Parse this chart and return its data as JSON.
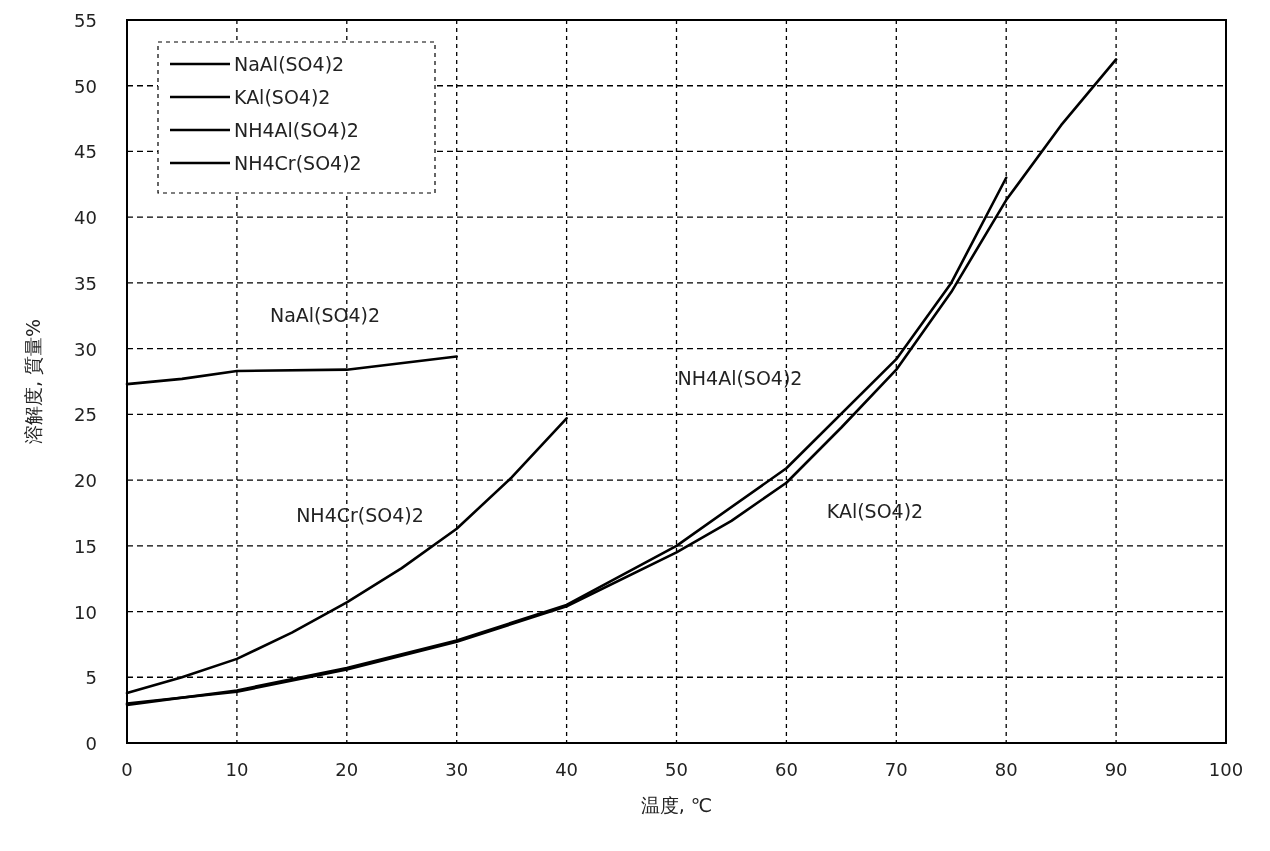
{
  "chart_data": {
    "type": "line",
    "xlabel": "温度, ℃",
    "ylabel": "溶解度, 質量%",
    "xlim": [
      0,
      100
    ],
    "xticks": [
      0,
      10,
      20,
      30,
      40,
      50,
      60,
      70,
      80,
      90,
      100
    ],
    "ylim": [
      0,
      55
    ],
    "yticks": [
      0,
      5,
      10,
      15,
      20,
      25,
      30,
      35,
      40,
      45,
      50,
      55
    ],
    "grid": true,
    "legend": "top left",
    "line_style": "solid",
    "marker": "none",
    "series": [
      {
        "name": "NaAl(SO4)2",
        "color": "#000000",
        "x": [
          0,
          5,
          10,
          20,
          30
        ],
        "values": [
          27.3,
          27.7,
          28.3,
          28.4,
          29.4
        ]
      },
      {
        "name": "KAl(SO4)2",
        "color": "#000000",
        "x": [
          0,
          10,
          20,
          30,
          40,
          50,
          55,
          60,
          65,
          70,
          75,
          80,
          85,
          90
        ],
        "values": [
          3.0,
          3.9,
          5.6,
          7.7,
          10.4,
          14.5,
          16.9,
          19.8,
          24.0,
          28.4,
          34.3,
          41.3,
          47.0,
          52.0
        ]
      },
      {
        "name": "NH4Al(SO4)2",
        "color": "#000000",
        "x": [
          0,
          10,
          20,
          30,
          40,
          50,
          60,
          70,
          75,
          80
        ],
        "values": [
          2.9,
          4.0,
          5.7,
          7.8,
          10.5,
          15.0,
          20.9,
          29.2,
          35.0,
          43.0
        ]
      },
      {
        "name": "NH4Cr(SO4)2",
        "color": "#000000",
        "x": [
          0,
          5,
          10,
          15,
          20,
          25,
          30,
          35,
          40
        ],
        "values": [
          3.8,
          5.0,
          6.4,
          8.4,
          10.7,
          13.3,
          16.3,
          20.2,
          24.7
        ]
      }
    ]
  }
}
